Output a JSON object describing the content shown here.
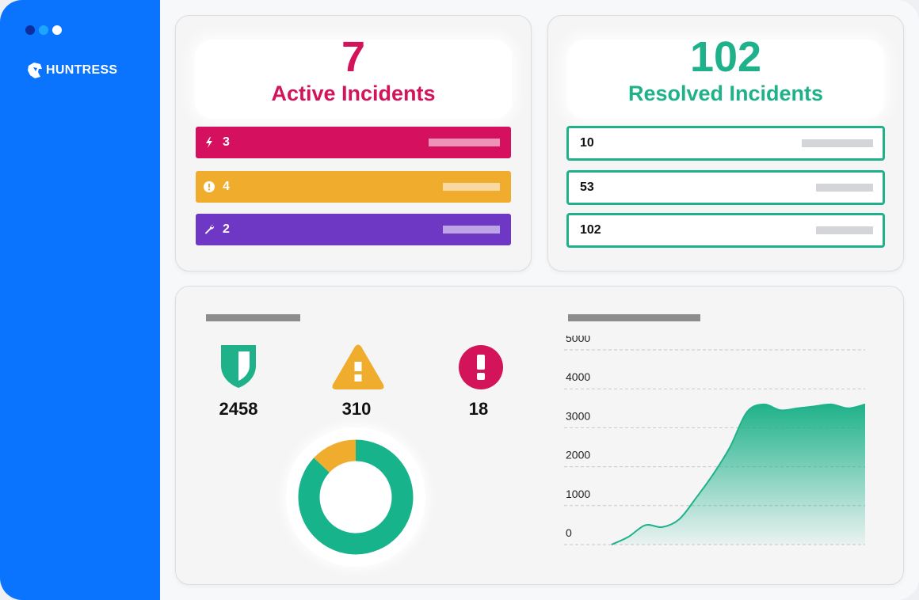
{
  "window": {
    "dot_colors": [
      "#0d2f9e",
      "#1ea6ff",
      "#ffffff"
    ]
  },
  "sidebar": {
    "brand": "HUNTRESS",
    "brand_icon": "huntress-hawk-icon"
  },
  "active": {
    "count": "7",
    "label": "Active Incidents",
    "color": "#d4145a",
    "rows": [
      {
        "icon": "lightning-icon",
        "value": "3",
        "color": "#d4105f"
      },
      {
        "icon": "alert-circle-icon",
        "value": "4",
        "color": "#f0ac2c"
      },
      {
        "icon": "wrench-icon",
        "value": "2",
        "color": "#6e37c4"
      }
    ]
  },
  "resolved": {
    "count": "102",
    "label": "Resolved Incidents",
    "color": "#1fb28a",
    "rows": [
      {
        "value": "10"
      },
      {
        "value": "53"
      },
      {
        "value": "102"
      }
    ]
  },
  "stats": [
    {
      "icon": "shield-icon",
      "value": "2458",
      "color": "#1fb28a"
    },
    {
      "icon": "warning-triangle-icon",
      "value": "310",
      "color": "#f0ac2c"
    },
    {
      "icon": "exclamation-circle-icon",
      "value": "18",
      "color": "#d4145a"
    }
  ],
  "donut": {
    "segments": [
      {
        "fraction": 0.87,
        "color": "#17b38a"
      },
      {
        "fraction": 0.13,
        "color": "#f0ac2c"
      }
    ]
  },
  "chart_data": {
    "type": "area",
    "title": "",
    "xlabel": "",
    "ylabel": "",
    "ylim": [
      0,
      5000
    ],
    "yticks": [
      5000,
      4000,
      3000,
      2000,
      1000,
      0
    ],
    "grid": true,
    "color": "#1fb28a",
    "series": [
      {
        "values": [
          0,
          200,
          500,
          450,
          650,
          1200,
          1800,
          2500,
          3400,
          3600,
          3450,
          3500,
          3550,
          3600,
          3500,
          3600
        ]
      }
    ]
  }
}
